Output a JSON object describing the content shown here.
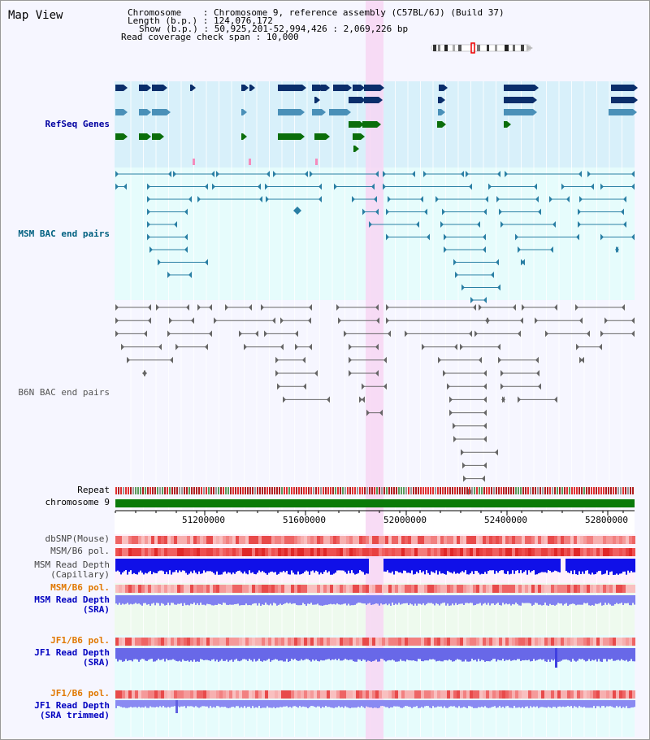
{
  "header": {
    "title": "Map View",
    "chromosome_label": "Chromosome",
    "chromosome_value": "Chromosome 9, reference assembly (C57BL/6J) (Build 37)",
    "length_label": "Length (b.p.)",
    "length_value": "124,076,172",
    "show_label": "Show (b.p.)",
    "show_value": "50,925,201-52,994,426 : 2,069,226 bp",
    "coverage_label": "Read coverage check span",
    "coverage_value": "10,000"
  },
  "tracks": {
    "refseq": "RefSeq Genes",
    "msm_bac": "MSM BAC end pairs",
    "b6n_bac": "B6N BAC end pairs",
    "repeat": "Repeat",
    "chromosome": "chromosome 9",
    "dbsnp": "dbSNP(Mouse)",
    "msm_b6_pol_1": "MSM/B6 pol.",
    "msm_read_depth_cap_1": "MSM Read Depth",
    "msm_read_depth_cap_2": "(Capillary)",
    "msm_b6_pol_2": "MSM/B6 pol.",
    "msm_read_depth_sra_1": "MSM Read Depth",
    "msm_read_depth_sra_2": "(SRA)",
    "jf1_b6_pol_1": "JF1/B6 pol.",
    "jf1_read_depth_1": "JF1 Read Depth",
    "jf1_read_depth_2": "(SRA)",
    "jf1_b6_pol_2": "JF1/B6 pol.",
    "jf1_read_depth_trim_1": "JF1 Read Depth",
    "jf1_read_depth_trim_2": "(SRA trimmed)"
  },
  "axis": {
    "ticks": [
      "51200000",
      "51600000",
      "52000000",
      "52400000",
      "52800000"
    ]
  },
  "colors": {
    "refseq_bg": "#d8f0fa",
    "msm_bg": "#e6fcfc",
    "b6n_bg": "#f6f6ff",
    "highlight": "#f7d6f3",
    "refseq_label": "#0000a0",
    "msm_label": "#006080",
    "b6n_label": "#555555",
    "orange_label": "#e07800",
    "blue_label": "#0000c0"
  }
}
